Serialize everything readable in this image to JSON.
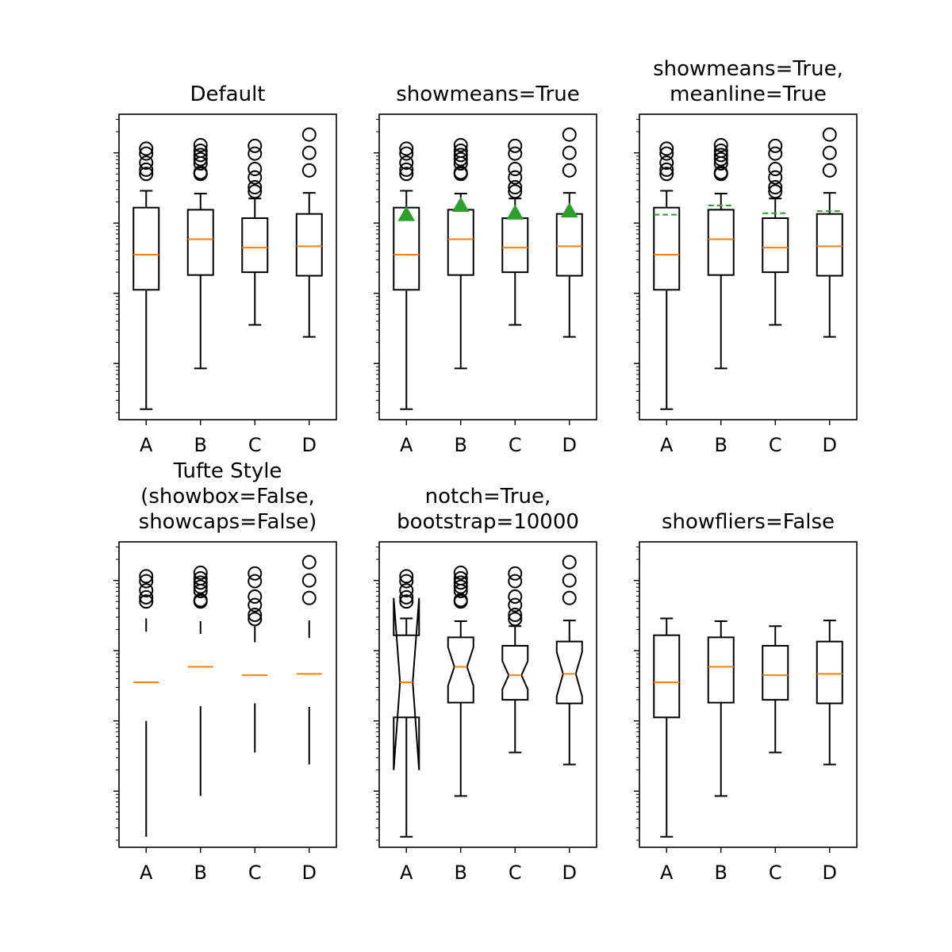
{
  "chart_data": {
    "type": "boxplot",
    "yscale": "log",
    "categories": [
      "A",
      "B",
      "C",
      "D"
    ],
    "log_ylim": [
      -2.8,
      1.55
    ],
    "stats": [
      {
        "name": "A",
        "whislo": -2.65,
        "q1": -0.95,
        "med": -0.45,
        "q3": 0.22,
        "whishi": 0.46,
        "mean": 0.12,
        "notch_lo": -1.7,
        "notch_hi": 0.75,
        "fliers": [
          0.7,
          0.76,
          0.86,
          0.99,
          1.06
        ]
      },
      {
        "name": "B",
        "whislo": -2.07,
        "q1": -0.74,
        "med": -0.23,
        "q3": 0.19,
        "whishi": 0.42,
        "mean": 0.25,
        "notch_lo": -0.5,
        "notch_hi": 0.05,
        "fliers": [
          0.7,
          0.72,
          0.85,
          0.91,
          0.97,
          1.03,
          1.11
        ]
      },
      {
        "name": "C",
        "whislo": -1.45,
        "q1": -0.7,
        "med": -0.35,
        "q3": 0.07,
        "whishi": 0.35,
        "mean": 0.14,
        "notch_lo": -0.55,
        "notch_hi": -0.15,
        "fliers": [
          0.45,
          0.51,
          0.65,
          0.77,
          0.99,
          1.1
        ]
      },
      {
        "name": "D",
        "whislo": -1.62,
        "q1": -0.75,
        "med": -0.33,
        "q3": 0.13,
        "whishi": 0.43,
        "mean": 0.17,
        "notch_lo": -0.65,
        "notch_hi": -0.02,
        "fliers": [
          0.75,
          1.0,
          1.26
        ]
      }
    ],
    "panels": [
      {
        "title_lines": [
          "Default"
        ],
        "showmeans": false,
        "meanline": false,
        "showbox": true,
        "showcaps": true,
        "notch": false,
        "showfliers": true
      },
      {
        "title_lines": [
          "showmeans=True"
        ],
        "showmeans": true,
        "meanline": false,
        "showbox": true,
        "showcaps": true,
        "notch": false,
        "showfliers": true
      },
      {
        "title_lines": [
          "showmeans=True,",
          "meanline=True"
        ],
        "showmeans": true,
        "meanline": true,
        "showbox": true,
        "showcaps": true,
        "notch": false,
        "showfliers": true
      },
      {
        "title_lines": [
          "Tufte Style",
          "(showbox=False,",
          "showcaps=False)"
        ],
        "showmeans": false,
        "meanline": false,
        "showbox": false,
        "showcaps": false,
        "notch": false,
        "showfliers": true
      },
      {
        "title_lines": [
          "notch=True,",
          "bootstrap=10000"
        ],
        "showmeans": false,
        "meanline": false,
        "showbox": true,
        "showcaps": true,
        "notch": true,
        "showfliers": true
      },
      {
        "title_lines": [
          "showfliers=False"
        ],
        "showmeans": false,
        "meanline": false,
        "showbox": true,
        "showcaps": true,
        "notch": false,
        "showfliers": false
      }
    ],
    "colors": {
      "median": "#ff7f0e",
      "mean": "#2ca02c",
      "line": "#000000"
    },
    "grid": false,
    "legend": "none"
  }
}
